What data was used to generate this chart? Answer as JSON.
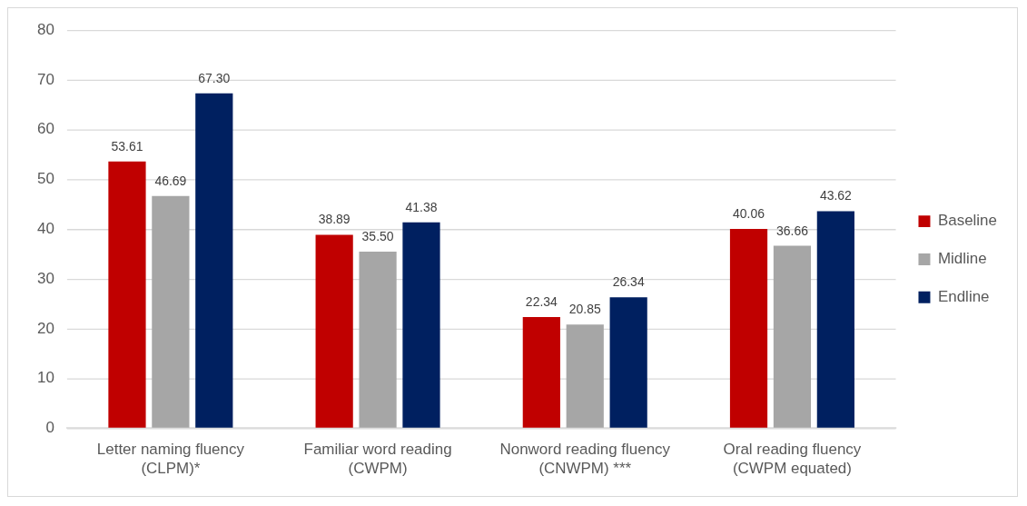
{
  "chart_data": {
    "type": "bar",
    "categories": [
      "Letter naming fluency (CLPM)*",
      "Familiar word reading (CWPM)",
      "Nonword reading fluency (CNWPM) ***",
      "Oral reading fluency (CWPM equated)"
    ],
    "series": [
      {
        "name": "Baseline",
        "color": "#c00000",
        "values": [
          53.61,
          38.89,
          22.34,
          40.06
        ],
        "value_labels": [
          "53.61",
          "38.89",
          "22.34",
          "40.06"
        ]
      },
      {
        "name": "Midline",
        "color": "#a6a6a6",
        "values": [
          46.69,
          35.5,
          20.85,
          36.66
        ],
        "value_labels": [
          "46.69",
          "35.50",
          "20.85",
          "36.66"
        ]
      },
      {
        "name": "Endline",
        "color": "#002060",
        "values": [
          67.3,
          41.38,
          26.34,
          43.62
        ],
        "value_labels": [
          "67.30",
          "41.38",
          "26.34",
          "43.62"
        ]
      }
    ],
    "ylim": [
      0,
      80
    ],
    "yticks": [
      0,
      10,
      20,
      30,
      40,
      50,
      60,
      70,
      80
    ],
    "grid": "y",
    "legend": "right"
  }
}
